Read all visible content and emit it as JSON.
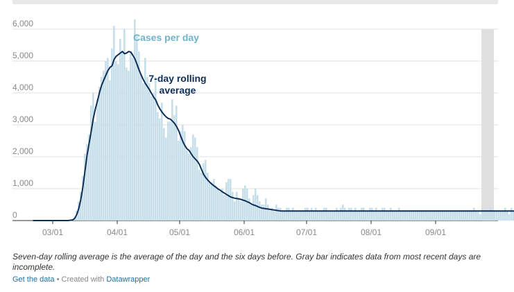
{
  "chart_data": {
    "type": "bar",
    "ylim": [
      0,
      6000
    ],
    "y_ticks": [
      0,
      1000,
      2000,
      3000,
      4000,
      5000,
      6000
    ],
    "y_tick_labels": [
      "0",
      "1,000",
      "2,000",
      "3,000",
      "4,000",
      "5,000",
      "6,000"
    ],
    "x_ticks": [
      "2020-03-01",
      "2020-04-01",
      "2020-05-01",
      "2020-06-01",
      "2020-07-01",
      "2020-08-01",
      "2020-09-01"
    ],
    "x_tick_labels": [
      "03/01",
      "04/01",
      "05/01",
      "06/01",
      "07/01",
      "08/01",
      "09/01"
    ],
    "start_date": "2020-02-20",
    "grid": true,
    "incomplete_period": [
      "2020-09-23",
      "2020-09-28"
    ],
    "colors": {
      "bars": "#c6dfe9",
      "line": "#0d2e57",
      "incomplete": "#e0e0e0",
      "cases_label": "#6fb3cc"
    },
    "series": [
      {
        "name": "Cases per day",
        "values": [
          0,
          0,
          0,
          0,
          0,
          0,
          0,
          0,
          0,
          0,
          0,
          0,
          0,
          0,
          0,
          0,
          0,
          10,
          20,
          50,
          120,
          300,
          600,
          900,
          1400,
          2100,
          2400,
          2700,
          3600,
          4000,
          3100,
          3800,
          4200,
          4500,
          4700,
          5000,
          5100,
          4400,
          5400,
          6100,
          5000,
          4900,
          5700,
          5300,
          6000,
          4800,
          4700,
          5300,
          5100,
          6300,
          5800,
          5300,
          4600,
          4300,
          5100,
          4500,
          4300,
          3900,
          4000,
          4500,
          3400,
          3200,
          3700,
          2900,
          2600,
          3100,
          3100,
          3800,
          3300,
          3600,
          2500,
          2800,
          3000,
          2800,
          2200,
          2100,
          2300,
          2700,
          2600,
          2300,
          1600,
          1500,
          1800,
          1900,
          1500,
          1200,
          1200,
          1300,
          1100,
          1000,
          900,
          1000,
          800,
          1200,
          1300,
          1300,
          900,
          600,
          900,
          700,
          600,
          1000,
          1100,
          1000,
          700,
          500,
          800,
          1000,
          800,
          600,
          500,
          500,
          700,
          500,
          300,
          400,
          300,
          500,
          400,
          400,
          300,
          300,
          400,
          400,
          300,
          400,
          300,
          300,
          300,
          300,
          300,
          400,
          400,
          300,
          400,
          300,
          400,
          300,
          300,
          300,
          400,
          400,
          300,
          300,
          300,
          300,
          400,
          300,
          400,
          500,
          400,
          300,
          400,
          400,
          300,
          400,
          300,
          300,
          400,
          400,
          300,
          300,
          400,
          400,
          300,
          400,
          300,
          300,
          400,
          400,
          300,
          300,
          400,
          300,
          300,
          300,
          400,
          300,
          300,
          300,
          300,
          300,
          300,
          300,
          300,
          300,
          300,
          300,
          300,
          300,
          300,
          300,
          300,
          300,
          300,
          300,
          300,
          300,
          300,
          300,
          300,
          300,
          300,
          300,
          300,
          300,
          300,
          300,
          300,
          300,
          300,
          300,
          400,
          300,
          300,
          200,
          400,
          300,
          300,
          300,
          400,
          300,
          300,
          300,
          300,
          300,
          300,
          400,
          300,
          200,
          400,
          300,
          300,
          400,
          300
        ]
      },
      {
        "name": "7-day rolling average",
        "values": [
          0,
          0,
          0,
          0,
          0,
          0,
          0,
          0,
          0,
          0,
          0,
          0,
          0,
          0,
          0,
          0,
          0,
          0,
          10,
          20,
          60,
          180,
          370,
          660,
          1050,
          1550,
          2050,
          2420,
          2800,
          3200,
          3500,
          3750,
          4020,
          4240,
          4400,
          4550,
          4700,
          4800,
          4850,
          5050,
          5150,
          5200,
          5250,
          5300,
          5230,
          5250,
          5300,
          5280,
          5180,
          5070,
          4900,
          4720,
          4560,
          4420,
          4300,
          4200,
          4100,
          3980,
          3870,
          3780,
          3620,
          3500,
          3400,
          3320,
          3250,
          3200,
          3180,
          3120,
          3050,
          2950,
          2820,
          2650,
          2480,
          2350,
          2250,
          2200,
          2100,
          2000,
          1930,
          1860,
          1760,
          1600,
          1450,
          1350,
          1270,
          1200,
          1140,
          1090,
          1040,
          990,
          950,
          900,
          860,
          820,
          780,
          740,
          720,
          700,
          690,
          680,
          660,
          640,
          620,
          590,
          560,
          520,
          490,
          470,
          440,
          410,
          390,
          380,
          370,
          360,
          350,
          340,
          330,
          320,
          310,
          300,
          300,
          300,
          300,
          300,
          300,
          300,
          300,
          300,
          300,
          300,
          300,
          300,
          300,
          300,
          300,
          300,
          300,
          300,
          300,
          300,
          300,
          300,
          300,
          300,
          300,
          300,
          300,
          300,
          300,
          300,
          300,
          300,
          300,
          300,
          300,
          300,
          300,
          300,
          300,
          300,
          300,
          300,
          300,
          300,
          300,
          300,
          300,
          300,
          300,
          300,
          300,
          300,
          300,
          300,
          300,
          300,
          300,
          300,
          300,
          300,
          300,
          300,
          300,
          300,
          300,
          300,
          300,
          300,
          300,
          300,
          300,
          300,
          300,
          300,
          300,
          300,
          300,
          300,
          300,
          300,
          300,
          300,
          300,
          300,
          300,
          300,
          300,
          300,
          300,
          300,
          300,
          300,
          300,
          300,
          300,
          300,
          300,
          300,
          300,
          300,
          300,
          300,
          300,
          300,
          300,
          300,
          300,
          300,
          300,
          300,
          300,
          300,
          300,
          300,
          300,
          300,
          300,
          300
        ]
      }
    ],
    "annotations": {
      "cases_label": "Cases per day",
      "avg_label_line1": "7-day rolling",
      "avg_label_line2": "average"
    }
  },
  "footer": {
    "note": "Seven-day rolling average is the average of the day and the six days before. Gray bar indicates data from most recent days are incomplete.",
    "get_data": "Get the data",
    "separator": " • Created with ",
    "tool": "Datawrapper"
  }
}
